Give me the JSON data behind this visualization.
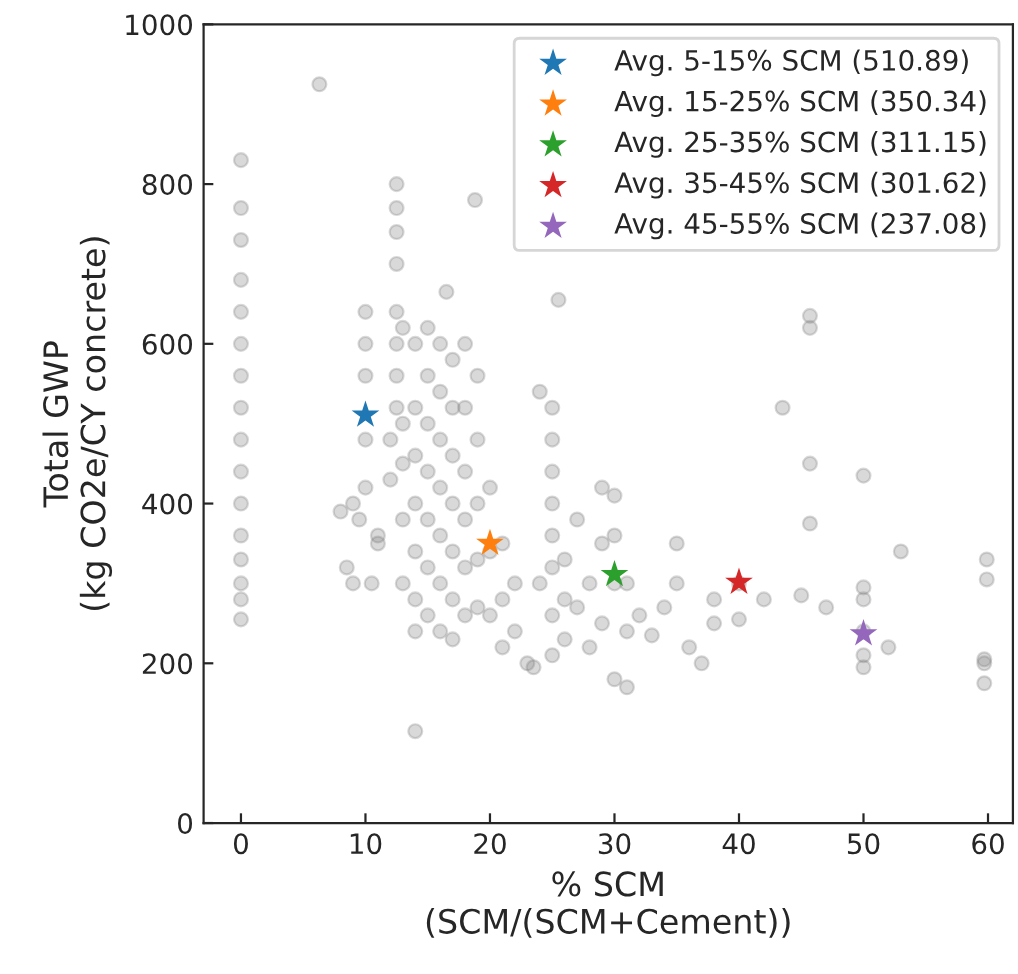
{
  "chart_data": {
    "type": "scatter",
    "xlabel": "% SCM\n(SCM/(SCM+Cement))",
    "ylabel": "Total GWP\n(kg CO2e/CY concrete)",
    "xlim": [
      -3,
      62
    ],
    "ylim": [
      0,
      1000
    ],
    "xticks": [
      0,
      10,
      20,
      30,
      40,
      50,
      60
    ],
    "yticks": [
      0,
      200,
      400,
      600,
      800,
      1000
    ],
    "grid": false,
    "legend": "top right",
    "series": [
      {
        "color": "#808080",
        "marker": "circle",
        "x": [
          0,
          0,
          0,
          0,
          0,
          0,
          0,
          0,
          0,
          0,
          0,
          0,
          0,
          0,
          0,
          0,
          6.3,
          8,
          8.5,
          9,
          9,
          9.5,
          10,
          10,
          10,
          10,
          10,
          10.5,
          11,
          11,
          12,
          12,
          12.5,
          12.5,
          12.5,
          12.5,
          12.5,
          12.5,
          12.5,
          12.5,
          13,
          13,
          13,
          13,
          13,
          14,
          14,
          14,
          14,
          14,
          14,
          14,
          15,
          15,
          15,
          15,
          15,
          15,
          15,
          16,
          16,
          16,
          16,
          16,
          16,
          16,
          17,
          17,
          17,
          17,
          17,
          17,
          17,
          18,
          18,
          18,
          18,
          18,
          18,
          19,
          19,
          19,
          19,
          19,
          20,
          20,
          20,
          21,
          21,
          21,
          22,
          22,
          23,
          23.5,
          24,
          24,
          25,
          25,
          25,
          25,
          25,
          25,
          25,
          25,
          26,
          26,
          26,
          27,
          27,
          28,
          28,
          29,
          29,
          29,
          30,
          30,
          30,
          30,
          31,
          31,
          31,
          32,
          33,
          34,
          35,
          35,
          36,
          37,
          38,
          38,
          40,
          40,
          42,
          43.5,
          45,
          45.7,
          45.7,
          45.7,
          45.7,
          47,
          50,
          50,
          50,
          50,
          50,
          50,
          52,
          53,
          59.7,
          59.7,
          59.7,
          59.9,
          59.9,
          14,
          16.5,
          18.8,
          25.5
        ],
        "values": [
          255,
          280,
          300,
          330,
          360,
          400,
          440,
          480,
          520,
          560,
          600,
          640,
          680,
          730,
          770,
          830,
          925,
          390,
          320,
          400,
          300,
          380,
          640,
          600,
          560,
          480,
          420,
          300,
          360,
          350,
          480,
          430,
          800,
          770,
          740,
          700,
          640,
          600,
          560,
          520,
          620,
          500,
          450,
          380,
          300,
          600,
          520,
          460,
          400,
          340,
          280,
          240,
          620,
          560,
          500,
          440,
          380,
          320,
          260,
          600,
          540,
          480,
          420,
          360,
          300,
          240,
          580,
          520,
          460,
          400,
          340,
          280,
          230,
          600,
          520,
          440,
          380,
          320,
          260,
          560,
          480,
          400,
          330,
          270,
          420,
          340,
          260,
          350,
          280,
          220,
          300,
          240,
          200,
          195,
          540,
          300,
          520,
          480,
          440,
          400,
          360,
          320,
          260,
          210,
          330,
          280,
          230,
          380,
          270,
          300,
          220,
          420,
          350,
          250,
          410,
          360,
          300,
          180,
          300,
          240,
          170,
          260,
          235,
          270,
          350,
          300,
          220,
          200,
          280,
          250,
          300,
          255,
          280,
          520,
          285,
          635,
          620,
          450,
          375,
          270,
          435,
          295,
          280,
          240,
          210,
          195,
          220,
          340,
          205,
          200,
          175,
          330,
          305,
          115,
          665,
          780,
          655
        ]
      },
      {
        "name": "Avg. 5-15% SCM (510.89)",
        "color": "#1f77b4",
        "marker": "star",
        "x": [
          10
        ],
        "values": [
          510.89
        ]
      },
      {
        "name": "Avg. 15-25% SCM (350.34)",
        "color": "#ff7f0e",
        "marker": "star",
        "x": [
          20
        ],
        "values": [
          350.34
        ]
      },
      {
        "name": "Avg. 25-35% SCM (311.15)",
        "color": "#2ca02c",
        "marker": "star",
        "x": [
          30
        ],
        "values": [
          311.15
        ]
      },
      {
        "name": "Avg. 35-45% SCM (301.62)",
        "color": "#d62728",
        "marker": "star",
        "x": [
          40
        ],
        "values": [
          301.62
        ]
      },
      {
        "name": "Avg. 45-55% SCM (237.08)",
        "color": "#9467bd",
        "marker": "star",
        "x": [
          50
        ],
        "values": [
          237.08
        ]
      }
    ]
  }
}
